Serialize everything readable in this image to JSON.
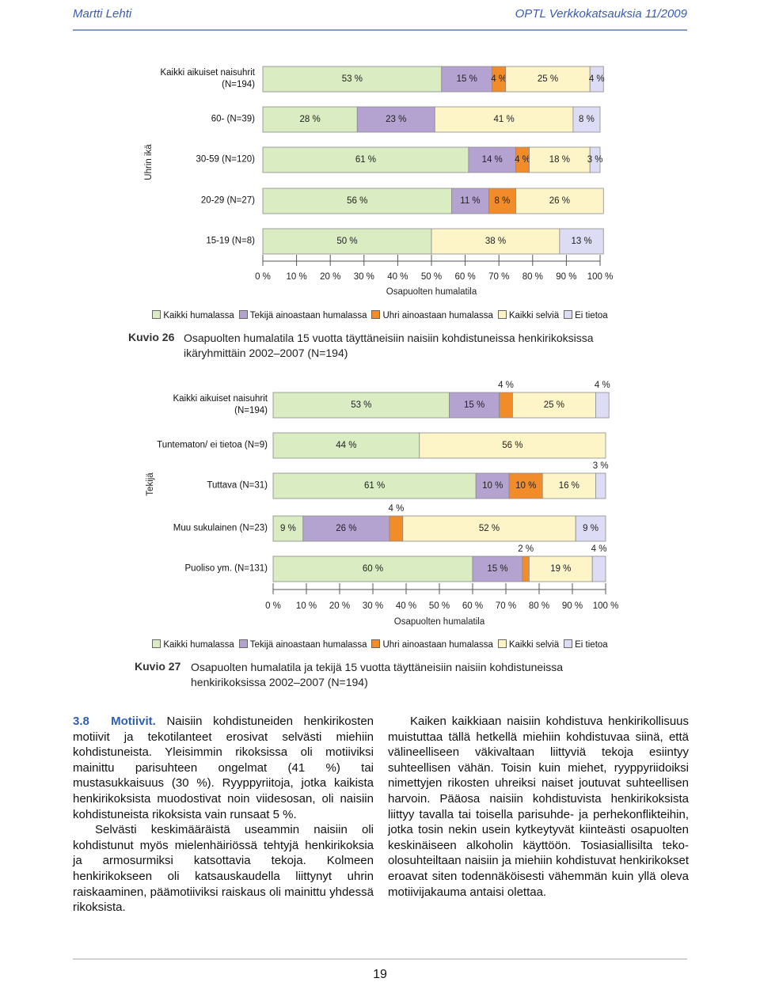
{
  "header": {
    "author": "Martti Lehti",
    "publication": "OPTL Verkkokatsauksia 11/2009"
  },
  "chart_data": [
    {
      "type": "bar",
      "orientation": "horizontal",
      "stacked": true,
      "ylabel": "Uhrin ikä",
      "xlabel": "Osapuolten humalatila",
      "categories": [
        "Kaikki aikuiset naisuhrit (N=194)",
        "60- (N=39)",
        "30-59 (N=120)",
        "20-29 (N=27)",
        "15-19 (N=8)"
      ],
      "xlim": [
        0,
        100
      ],
      "xticks": [
        {
          "value": 0,
          "label": "0 %"
        },
        {
          "value": 10,
          "label": "10 %"
        },
        {
          "value": 20,
          "label": "20 %"
        },
        {
          "value": 30,
          "label": "30 %"
        },
        {
          "value": 40,
          "label": "40 %"
        },
        {
          "value": 50,
          "label": "50 %"
        },
        {
          "value": 60,
          "label": "60 %"
        },
        {
          "value": 70,
          "label": "70 %"
        },
        {
          "value": 80,
          "label": "80 %"
        },
        {
          "value": 90,
          "label": "90 %"
        },
        {
          "value": 100,
          "label": "100 %"
        }
      ],
      "series": [
        {
          "name": "Kaikki humalassa",
          "color": "#d9ecc2",
          "values": [
            53,
            28,
            61,
            56,
            50
          ],
          "value_labels": [
            "53 %",
            "28 %",
            "61 %",
            "56 %",
            "50 %"
          ]
        },
        {
          "name": "Tekijä ainoastaan humalassa",
          "color": "#b4a3d1",
          "values": [
            15,
            23,
            14,
            11,
            null
          ],
          "value_labels": [
            "15 %",
            "23 %",
            "14 %",
            "11 %",
            null
          ]
        },
        {
          "name": "Uhri ainoastaan humalassa",
          "color": "#f28c28",
          "values": [
            4,
            null,
            4,
            8,
            null
          ],
          "value_labels": [
            "4 %",
            null,
            "4 %",
            "8 %",
            null
          ]
        },
        {
          "name": "Kaikki selviä",
          "color": "#fdf4c8",
          "values": [
            25,
            41,
            18,
            26,
            38
          ],
          "value_labels": [
            "25 %",
            "41 %",
            "18 %",
            "26 %",
            "38 %"
          ]
        },
        {
          "name": "Ei tietoa",
          "color": "#dcdcf4",
          "values": [
            4,
            8,
            3,
            null,
            13
          ],
          "value_labels": [
            "4 %",
            "8 %",
            "3 %",
            null,
            "13 %"
          ]
        }
      ],
      "caption_label": "Kuvio 26",
      "caption": "Osapuolten humalatila 15 vuotta täyttäneisiin naisiin kohdistuneissa henkirikoksissa ikäryhmittäin 2002–2007 (N=194)"
    },
    {
      "type": "bar",
      "orientation": "horizontal",
      "stacked": true,
      "ylabel": "Tekijä",
      "xlabel": "Osapuolten humalatila",
      "categories": [
        "Kaikki aikuiset naisuhrit (N=194)",
        "Tuntematon/ ei tietoa (N=9)",
        "Tuttava (N=31)",
        "Muu sukulainen (N=23)",
        "Puoliso ym. (N=131)"
      ],
      "xlim": [
        0,
        100
      ],
      "xticks": [
        {
          "value": 0,
          "label": "0 %"
        },
        {
          "value": 10,
          "label": "10 %"
        },
        {
          "value": 20,
          "label": "20 %"
        },
        {
          "value": 30,
          "label": "30 %"
        },
        {
          "value": 40,
          "label": "40 %"
        },
        {
          "value": 50,
          "label": "50 %"
        },
        {
          "value": 60,
          "label": "60 %"
        },
        {
          "value": 70,
          "label": "70 %"
        },
        {
          "value": 80,
          "label": "80 %"
        },
        {
          "value": 90,
          "label": "90 %"
        },
        {
          "value": 100,
          "label": "100 %"
        }
      ],
      "series": [
        {
          "name": "Kaikki humalassa",
          "color": "#d9ecc2",
          "values": [
            53,
            44,
            61,
            9,
            60
          ],
          "value_labels": [
            "53 %",
            "44 %",
            "61 %",
            "9 %",
            "60 %"
          ]
        },
        {
          "name": "Tekijä ainoastaan humalassa",
          "color": "#b4a3d1",
          "values": [
            15,
            null,
            10,
            26,
            15
          ],
          "value_labels": [
            "15 %",
            null,
            "10 %",
            "26 %",
            "15 %"
          ]
        },
        {
          "name": "Uhri ainoastaan humalassa",
          "color": "#f28c28",
          "values": [
            4,
            null,
            10,
            4,
            2
          ],
          "value_labels": [
            "4 %",
            null,
            "10 %",
            "4 %",
            "2 %"
          ]
        },
        {
          "name": "Kaikki selviä",
          "color": "#fdf4c8",
          "values": [
            25,
            56,
            16,
            52,
            19
          ],
          "value_labels": [
            "25 %",
            "56 %",
            "16 %",
            "52 %",
            "19 %"
          ]
        },
        {
          "name": "Ei tietoa",
          "color": "#dcdcf4",
          "values": [
            4,
            null,
            3,
            9,
            4
          ],
          "value_labels": [
            "4 %",
            null,
            "3 %",
            "9 %",
            "4 %"
          ]
        }
      ],
      "caption_label": "Kuvio 27",
      "caption": "Osapuolten humalatila ja tekijä 15 vuotta täyttäneisiin naisiin kohdistuneissa henkirikoksissa 2002–2007 (N=194)"
    }
  ],
  "body": {
    "section_number": "3.8",
    "section_title": "Motiivit.",
    "left_column": [
      "Naisiin kohdistuneiden henkirikosten motiivit ja tekotilanteet erosivat selvästi miehiin kohdistuneista. Yleisimmin rikoksissa oli motiiviksi mainittu parisuhteen ongelmat (41 %) tai mustasukkaisuus (30 %). Ryyppyriitoja, jotka kaikista henkirikoksista muodostivat noin viidesosan, oli naisiin kohdistuneista rikoksista vain runsaat 5 %.",
      "Selvästi keskimääräistä useammin naisiin oli kohdistunut myös mielenhäiriössä tehtyjä henkirikoksia ja armosurmiksi katsottavia tekoja. Kolmeen henkirikokseen oli katsauskaudella liittynyt uhrin raiskaaminen, päämotiiviksi raiskaus oli mainittu yhdessä rikoksista."
    ],
    "right_column": [
      "Kaiken kaikkiaan naisiin kohdistuva henkirikollisuus muistuttaa tällä hetkellä miehiin kohdistuvaa siinä, että välineelliseen väkivaltaan liittyviä tekoja esiintyy suhteellisen vähän. Toisin kuin miehet, ryyppyriidoiksi nimettyjen rikosten uhreiksi naiset joutuvat suhteellisen harvoin. Pääosa naisiin kohdistuvista henkirikoksista liittyy tavalla tai toisella parisuhde- ja perhekonflikteihin, jotka tosin nekin usein kytkeytyvät kiinteästi osapuolten keskinäiseen alkoholin käyttöön. Tosiasiallisilta teko-olosuhteiltaan naisiin ja miehiin kohdistuvat henkirikokset eroavat siten todennäköisesti vähemmän kuin yllä oleva motiivijakauma antaisi olettaa."
    ]
  },
  "page_number": "19"
}
